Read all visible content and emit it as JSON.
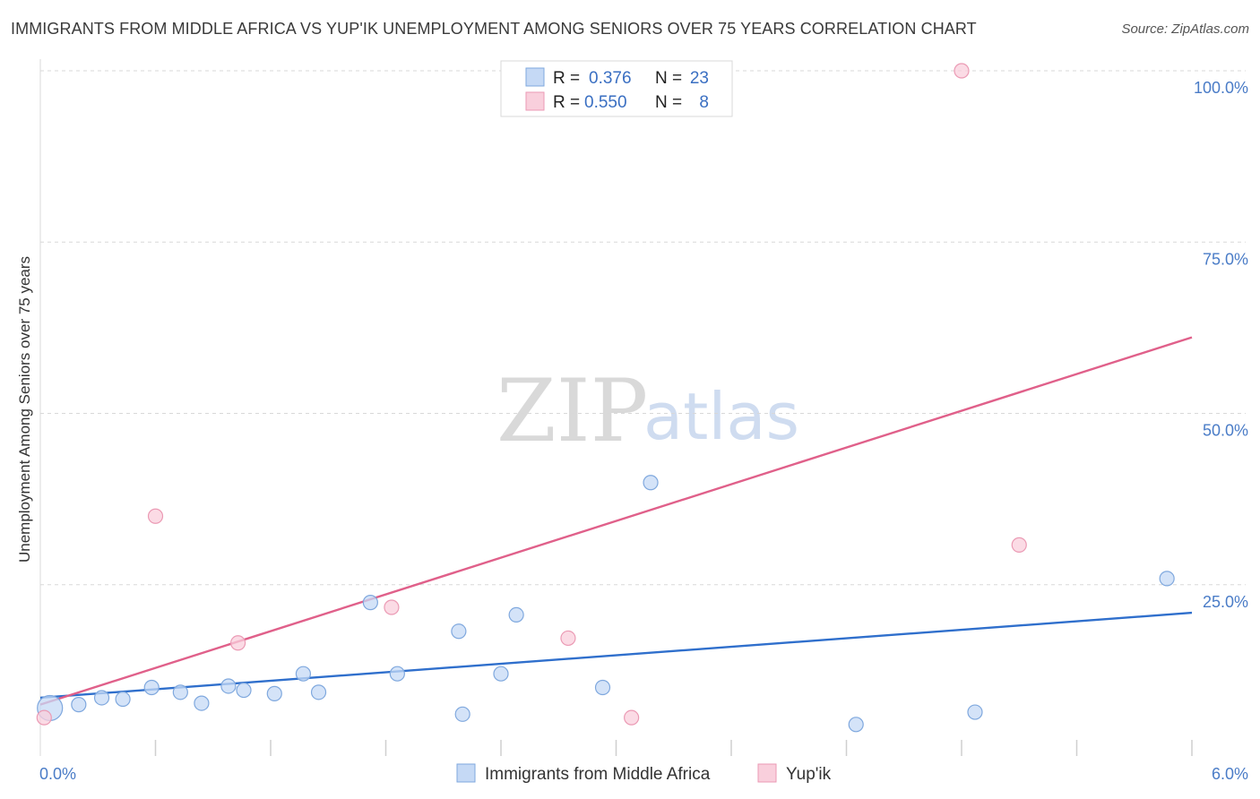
{
  "title": "IMMIGRANTS FROM MIDDLE AFRICA VS YUP'IK UNEMPLOYMENT AMONG SENIORS OVER 75 YEARS CORRELATION CHART",
  "source": "Source: ZipAtlas.com",
  "watermark": {
    "zip": "ZIP",
    "atlas": "atlas"
  },
  "colors": {
    "blue_fill": "#c5d9f5",
    "blue_stroke": "#7fa8de",
    "blue_line": "#2f6fcc",
    "pink_fill": "#f9cfdc",
    "pink_stroke": "#eb9ab4",
    "pink_line": "#e0608a",
    "grid": "#d8d8d8",
    "axis_text": "#4a7cc7"
  },
  "legend": {
    "rows": [
      {
        "r_label": "R =",
        "r_value": "0.376",
        "n_label": "N =",
        "n_value": "23",
        "series": "blue"
      },
      {
        "r_label": "R =",
        "r_value": "0.550",
        "n_label": "N =",
        "n_value": "8",
        "series": "pink"
      }
    ]
  },
  "chart_data": {
    "type": "scatter",
    "title": "IMMIGRANTS FROM MIDDLE AFRICA VS YUP'IK UNEMPLOYMENT AMONG SENIORS OVER 75 YEARS CORRELATION CHART",
    "xlabel": "",
    "ylabel": "Unemployment Among Seniors over 75 years",
    "xlim": [
      0,
      6
    ],
    "ylim": [
      0,
      100
    ],
    "x_tick_labels": [
      "0.0%",
      "6.0%"
    ],
    "y_ticks": [
      25,
      50,
      75,
      100
    ],
    "y_tick_labels": [
      "25.0%",
      "50.0%",
      "75.0%",
      "100.0%"
    ],
    "series": [
      {
        "name": "Immigrants from Middle Africa",
        "color": "blue",
        "points": [
          {
            "x": 0.05,
            "y": 7.0,
            "big": true
          },
          {
            "x": 0.2,
            "y": 7.5
          },
          {
            "x": 0.32,
            "y": 8.5
          },
          {
            "x": 0.43,
            "y": 8.3
          },
          {
            "x": 0.58,
            "y": 10.0
          },
          {
            "x": 0.73,
            "y": 9.3
          },
          {
            "x": 0.84,
            "y": 7.7
          },
          {
            "x": 0.98,
            "y": 10.2
          },
          {
            "x": 1.06,
            "y": 9.6
          },
          {
            "x": 1.22,
            "y": 9.1
          },
          {
            "x": 1.37,
            "y": 12.0
          },
          {
            "x": 1.45,
            "y": 9.3
          },
          {
            "x": 1.72,
            "y": 22.4
          },
          {
            "x": 1.86,
            "y": 12.0
          },
          {
            "x": 2.18,
            "y": 18.2
          },
          {
            "x": 2.2,
            "y": 6.1
          },
          {
            "x": 2.4,
            "y": 12.0
          },
          {
            "x": 2.48,
            "y": 20.6
          },
          {
            "x": 2.93,
            "y": 10.0
          },
          {
            "x": 3.18,
            "y": 39.9
          },
          {
            "x": 4.25,
            "y": 4.6
          },
          {
            "x": 4.87,
            "y": 6.4
          },
          {
            "x": 5.87,
            "y": 25.9
          }
        ],
        "trend": {
          "x": [
            0,
            6
          ],
          "y": [
            8.5,
            20.9
          ]
        }
      },
      {
        "name": "Yup'ik",
        "color": "pink",
        "points": [
          {
            "x": 0.02,
            "y": 5.6
          },
          {
            "x": 0.6,
            "y": 35.0
          },
          {
            "x": 1.03,
            "y": 16.5
          },
          {
            "x": 1.83,
            "y": 21.7
          },
          {
            "x": 2.75,
            "y": 17.2
          },
          {
            "x": 3.08,
            "y": 5.6
          },
          {
            "x": 4.8,
            "y": 100.0
          },
          {
            "x": 5.1,
            "y": 30.8
          }
        ],
        "trend": {
          "x": [
            0,
            6
          ],
          "y": [
            7.5,
            61.1
          ]
        }
      }
    ],
    "legend_position": "top-center",
    "bottom_legend": [
      "Immigrants from Middle Africa",
      "Yup'ik"
    ],
    "grid": true
  }
}
